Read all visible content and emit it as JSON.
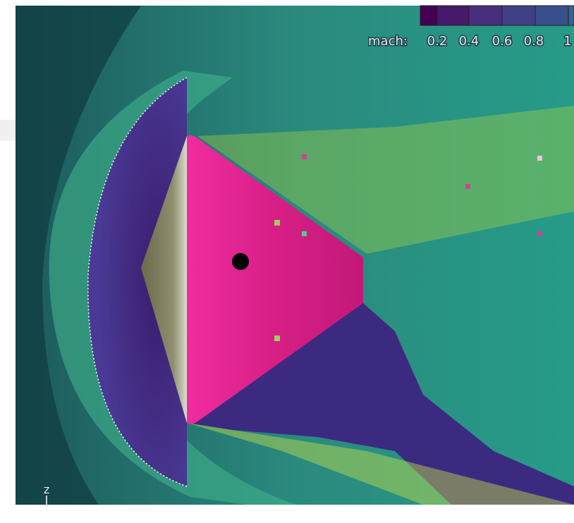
{
  "colorbar": {
    "label": "mach:",
    "ticks": [
      "0.2",
      "0.4",
      "0.6",
      "0.8",
      "1"
    ]
  },
  "axis_label": "Z"
}
